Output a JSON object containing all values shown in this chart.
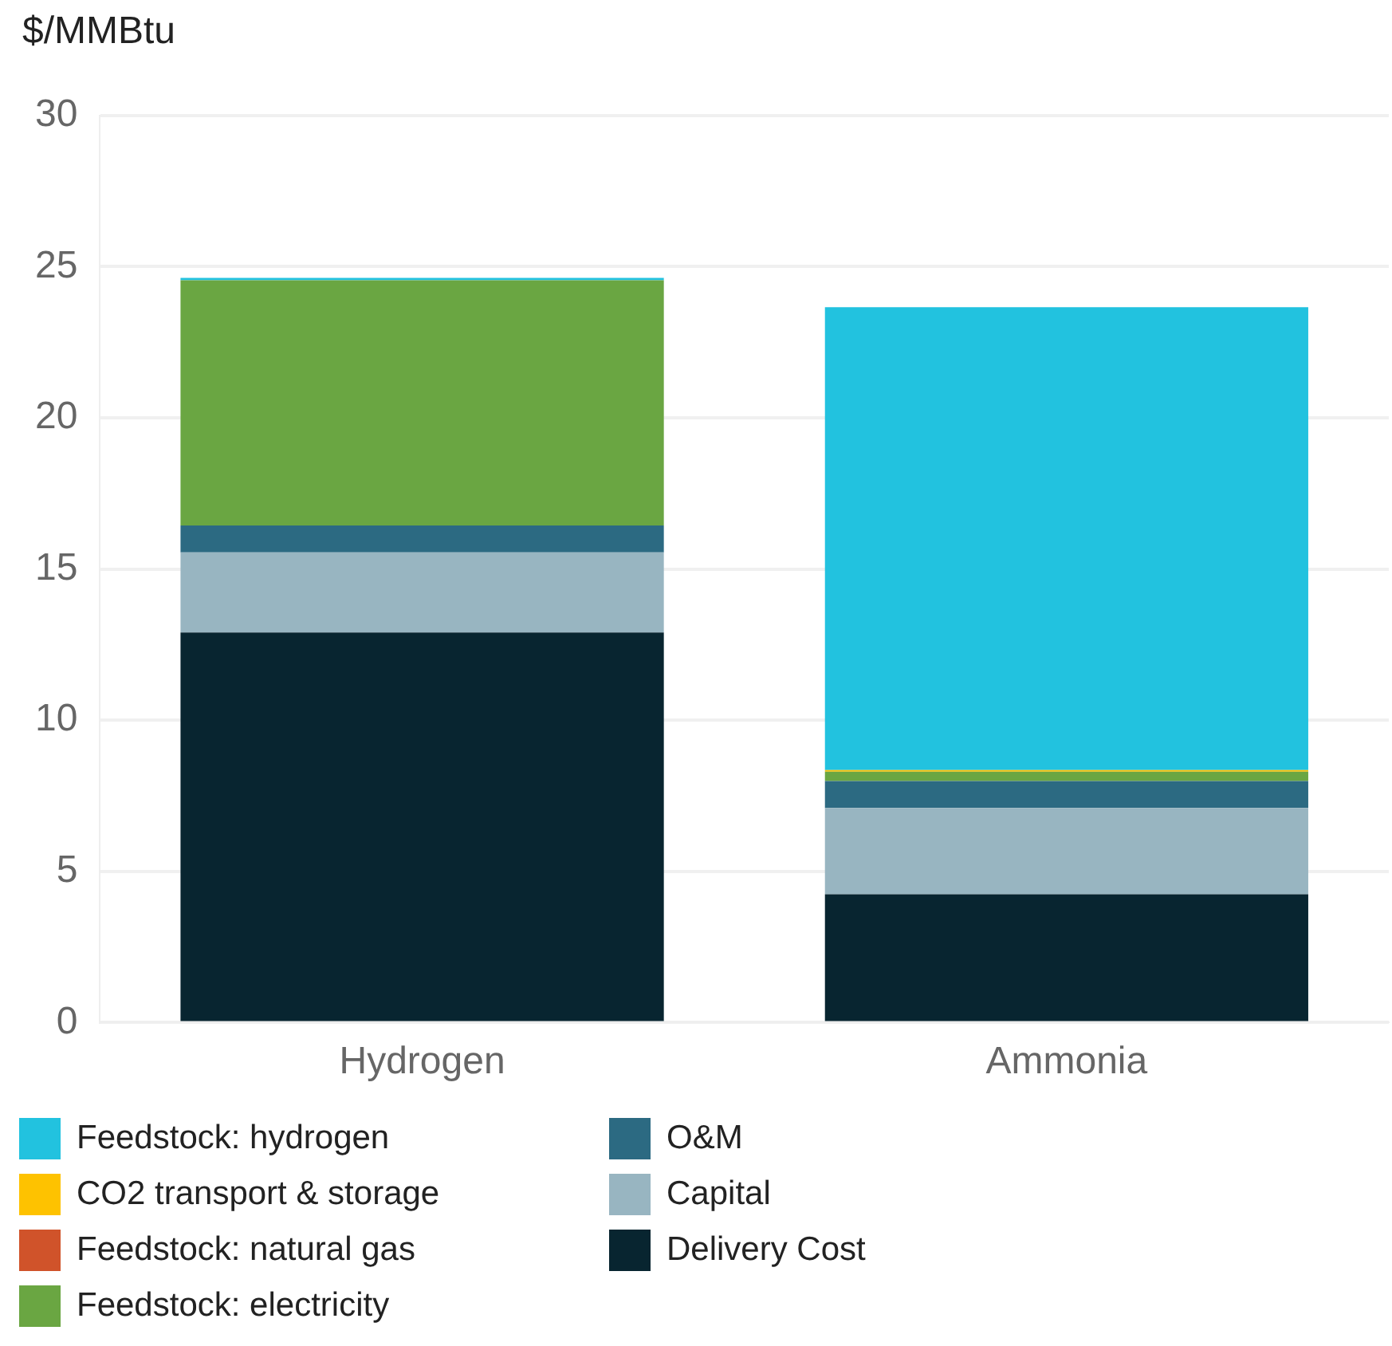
{
  "chart_data": {
    "type": "bar",
    "stacked": true,
    "ylabel": "$/MMBtu",
    "categories": [
      "Hydrogen",
      "Ammonia"
    ],
    "series": [
      {
        "name": "Delivery Cost",
        "color": "#082530",
        "values": [
          12.9,
          4.24
        ]
      },
      {
        "name": "Capital",
        "color": "#98b5c1",
        "values": [
          2.65,
          2.86
        ]
      },
      {
        "name": "O&M",
        "color": "#2c6a82",
        "values": [
          0.89,
          0.89
        ]
      },
      {
        "name": "Feedstock: electricity",
        "color": "#6aa642",
        "values": [
          8.11,
          0.31
        ]
      },
      {
        "name": "Feedstock: natural gas",
        "color": "#d0532a",
        "values": [
          0,
          0
        ]
      },
      {
        "name": "CO2 transport & storage",
        "color": "#fec200",
        "values": [
          0,
          0.05
        ]
      },
      {
        "name": "Feedstock: hydrogen",
        "color": "#22c2df",
        "values": [
          0.08,
          15.31
        ]
      }
    ],
    "ylim": [
      0,
      30
    ],
    "yticks": [
      0,
      5,
      10,
      15,
      20,
      25,
      30
    ],
    "grid": "y",
    "legend": "bottom"
  }
}
